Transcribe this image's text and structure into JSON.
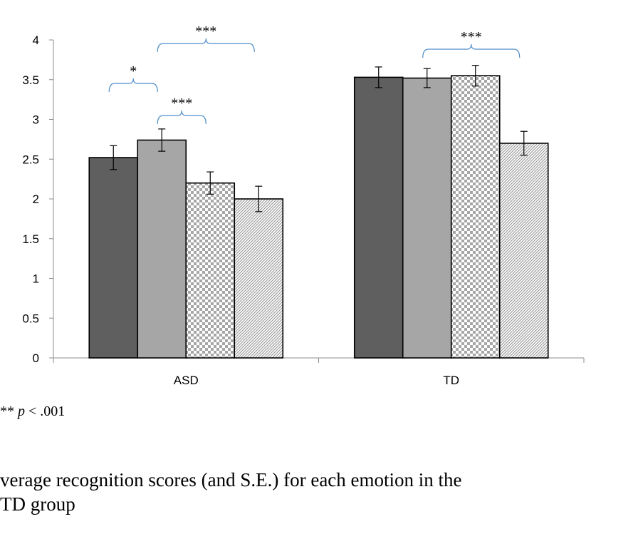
{
  "chart_data": {
    "type": "bar",
    "categories": [
      "ASD",
      "TD"
    ],
    "series": [
      {
        "values": [
          2.52,
          3.53
        ],
        "se": [
          0.15,
          0.13
        ],
        "color": "#5f5f5f",
        "pattern": "solid-dark"
      },
      {
        "values": [
          2.74,
          3.52
        ],
        "se": [
          0.14,
          0.12
        ],
        "color": "#a6a6a6",
        "pattern": "solid-light"
      },
      {
        "values": [
          2.2,
          3.55
        ],
        "se": [
          0.14,
          0.13
        ],
        "color": "#a6a6a6",
        "pattern": "checker"
      },
      {
        "values": [
          2.0,
          2.7
        ],
        "se": [
          0.16,
          0.15
        ],
        "color": "#b4b4b4",
        "pattern": "diagonal"
      }
    ],
    "ylim": [
      0,
      4
    ],
    "yticks": [
      "0",
      "0.5",
      "1",
      "1.5",
      "2",
      "2.5",
      "3",
      "3.5",
      "4"
    ],
    "grid": false,
    "significance": [
      {
        "category": "ASD",
        "from_series": 1,
        "to_series": 3,
        "label": "***"
      },
      {
        "category": "ASD",
        "from_series": 0,
        "to_series": 1,
        "label": "*"
      },
      {
        "category": "ASD",
        "from_series": 1,
        "to_series": 2,
        "label": "***"
      },
      {
        "category": "TD",
        "from_series": 1,
        "to_series": 3,
        "label": "***"
      }
    ],
    "bracket_color": "#4f8ec9"
  },
  "footnote": {
    "prefix": "** ",
    "p": "p",
    "suffix": " < .001"
  },
  "caption": {
    "line1": "verage recognition scores (and S.E.) for each emotion in the",
    "line2": " TD group"
  }
}
